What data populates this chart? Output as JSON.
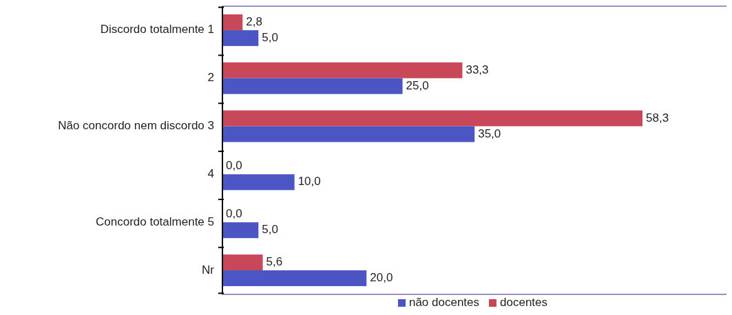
{
  "chart_data": {
    "type": "bar",
    "orientation": "horizontal",
    "relative": false,
    "categories": [
      "Discordo totalmente 1",
      "2",
      "Não concordo nem discordo  3",
      "4",
      "Concordo totalmente 5",
      "Nr"
    ],
    "series": [
      {
        "name": "docentes",
        "color": "#c8485a",
        "values": [
          2.8,
          33.3,
          58.3,
          0.0,
          0.0,
          5.6
        ],
        "value_labels": [
          "2,8",
          "33,3",
          "58,3",
          "0,0",
          "0,0",
          "5,6"
        ]
      },
      {
        "name": "não docentes",
        "color": "#4b55c3",
        "values": [
          5.0,
          25.0,
          35.0,
          10.0,
          5.0,
          20.0
        ],
        "value_labels": [
          "5,0",
          "25,0",
          "35,0",
          "10,0",
          "5,0",
          "20,0"
        ]
      }
    ],
    "legend": "bottom"
  }
}
